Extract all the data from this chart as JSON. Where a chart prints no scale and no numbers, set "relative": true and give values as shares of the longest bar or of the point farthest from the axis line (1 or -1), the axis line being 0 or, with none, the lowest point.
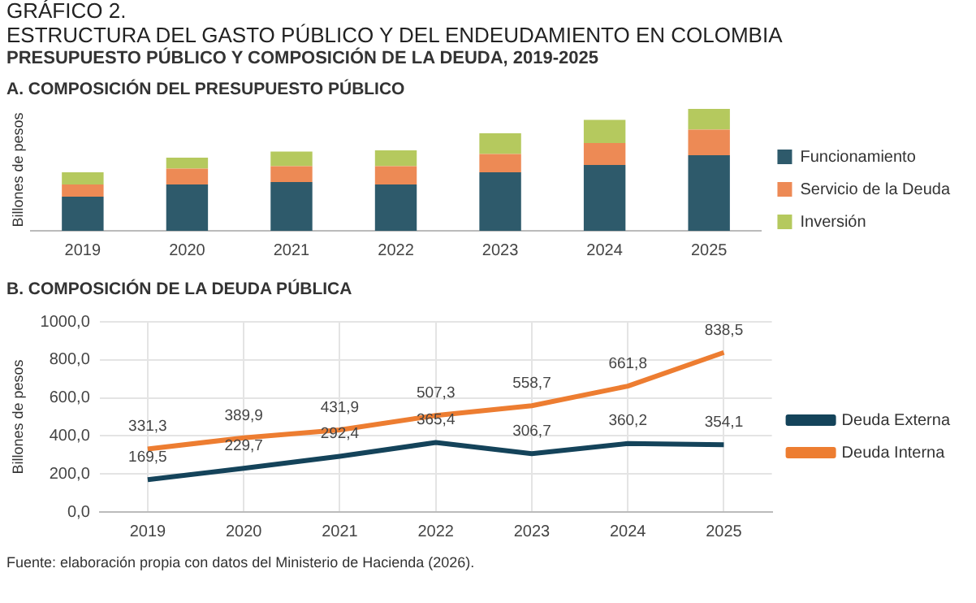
{
  "chart_data": [
    {
      "type": "bar",
      "title": "A. COMPOSICIÓN DEL PRESUPUESTO PÚBLICO",
      "ylabel": "Billones de pesos",
      "annotations": [
        "GRÁFICO 2.",
        "ESTRUCTURA DEL GASTO PÚBLICO Y DEL ENDEUDAMIENTO EN COLOMBIA",
        "PRESUPUESTO PÚBLICO Y COMPOSICIÓN DE LA DEUDA, 2019-2025"
      ],
      "categories": [
        "2019",
        "2020",
        "2021",
        "2022",
        "2023",
        "2024",
        "2025"
      ],
      "series": [
        {
          "name": "Funcionamiento",
          "color": "#2e5a6b",
          "values": [
            0.28,
            0.38,
            0.4,
            0.38,
            0.48,
            0.54,
            0.62
          ]
        },
        {
          "name": "Servicio de la Deuda",
          "color": "#ed8a55",
          "values": [
            0.1,
            0.13,
            0.13,
            0.15,
            0.15,
            0.18,
            0.21
          ]
        },
        {
          "name": "Inversión",
          "color": "#b5c95e",
          "values": [
            0.1,
            0.09,
            0.12,
            0.13,
            0.17,
            0.19,
            0.17
          ]
        }
      ],
      "stacked": true,
      "relative": true,
      "legend": "right",
      "grid": false
    },
    {
      "type": "line",
      "title": "B. COMPOSICIÓN DE LA DEUDA PÚBLICA",
      "ylabel": "Billones de pesos",
      "annotations": [
        "Fuente: elaboración propia con datos del Ministerio de Hacienda (2026)."
      ],
      "categories": [
        "2019",
        "2020",
        "2021",
        "2022",
        "2023",
        "2024",
        "2025"
      ],
      "series": [
        {
          "name": "Deuda Externa",
          "color": "#14435a",
          "values": [
            169.5,
            229.7,
            292.4,
            365.4,
            306.7,
            360.2,
            354.1
          ],
          "value_labels": [
            "169,5",
            "229,7",
            "292,4",
            "365,4",
            "306,7",
            "360,2",
            "354,1"
          ]
        },
        {
          "name": "Deuda Interna",
          "color": "#ed7d31",
          "values": [
            331.3,
            389.9,
            431.9,
            507.3,
            558.7,
            661.8,
            838.5
          ],
          "value_labels": [
            "331,3",
            "389,9",
            "431,9",
            "507,3",
            "558,7",
            "661,8",
            "838,5"
          ]
        }
      ],
      "ylim": [
        0,
        1000
      ],
      "yticks": [
        {
          "value": 0,
          "label": "0,0"
        },
        {
          "value": 200,
          "label": "200,0"
        },
        {
          "value": 400,
          "label": "400,0"
        },
        {
          "value": 600,
          "label": "600,0"
        },
        {
          "value": 800,
          "label": "800,0"
        },
        {
          "value": 1000,
          "label": "1000,0"
        }
      ],
      "grid": true,
      "legend": "right",
      "marker": "none"
    }
  ]
}
